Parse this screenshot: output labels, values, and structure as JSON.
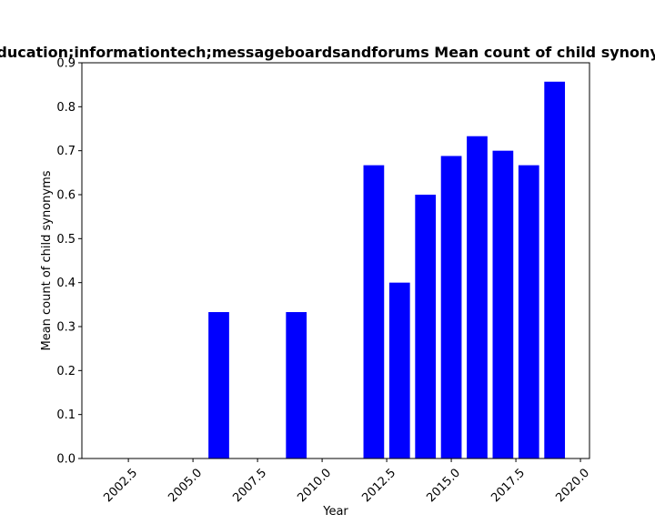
{
  "chart_data": {
    "type": "bar",
    "title": "o education;informationtech;messageboardsandforums Mean count of child synonyms",
    "xlabel": "Year",
    "ylabel": "Mean count of child synonyms",
    "x": [
      2006,
      2009,
      2012,
      2013,
      2014,
      2015,
      2016,
      2017,
      2018,
      2019
    ],
    "values": [
      0.333,
      0.333,
      0.667,
      0.4,
      0.6,
      0.688,
      0.733,
      0.7,
      0.667,
      0.857
    ],
    "xlim": [
      2000.7,
      2020.35
    ],
    "ylim": [
      0,
      0.9
    ],
    "xticks": [
      2002.5,
      2005.0,
      2007.5,
      2010.0,
      2012.5,
      2015.0,
      2017.5,
      2020.0
    ],
    "xtick_labels": [
      "2002.5",
      "2005.0",
      "2007.5",
      "2010.0",
      "2012.5",
      "2015.0",
      "2017.5",
      "2020.0"
    ],
    "yticks": [
      0.0,
      0.1,
      0.2,
      0.3,
      0.4,
      0.5,
      0.6,
      0.7,
      0.8,
      0.9
    ],
    "ytick_labels": [
      "0.0",
      "0.1",
      "0.2",
      "0.3",
      "0.4",
      "0.5",
      "0.6",
      "0.7",
      "0.8",
      "0.9"
    ],
    "bar_width": 0.8,
    "bar_color": "#0000ff",
    "grid": false,
    "legend": "none"
  }
}
